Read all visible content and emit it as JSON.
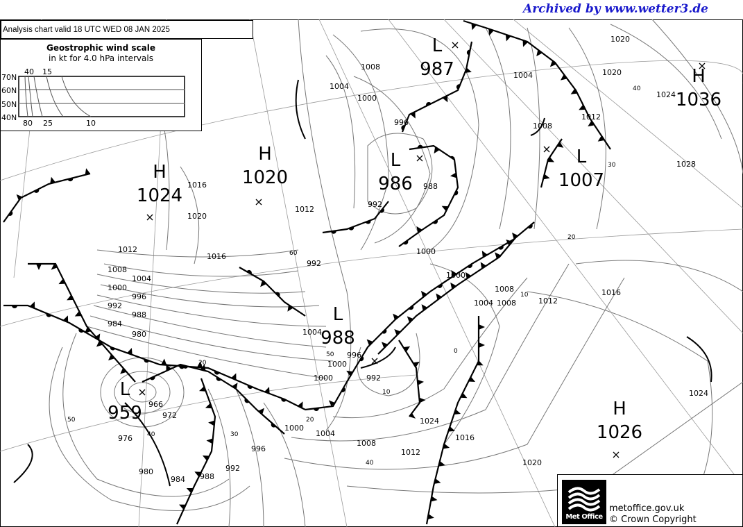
{
  "archive_text": "Archived by www.wetter3.de",
  "title": "Analysis chart  valid 18 UTC WED 08  JAN 2025",
  "wind_scale": {
    "heading": "Geostrophic wind scale",
    "subheading": "in kt for 4.0 hPa intervals",
    "latitudes": [
      "70N",
      "60N",
      "50N",
      "40N"
    ],
    "top_labels": [
      "40",
      "15"
    ],
    "bottom_labels": [
      "80",
      "25",
      "10"
    ]
  },
  "pressure_centres": [
    {
      "type": "L",
      "value": "987"
    },
    {
      "type": "H",
      "value": "1036"
    },
    {
      "type": "L",
      "value": "986"
    },
    {
      "type": "L",
      "value": "1007"
    },
    {
      "type": "H",
      "value": "1020"
    },
    {
      "type": "H",
      "value": "1024"
    },
    {
      "type": "L",
      "value": "988"
    },
    {
      "type": "L",
      "value": "959"
    },
    {
      "type": "H",
      "value": "1026"
    }
  ],
  "isobar_labels": [
    "1008",
    "1004",
    "1000",
    "996",
    "992",
    "988",
    "1004",
    "1008",
    "1012",
    "1020",
    "1024",
    "1028",
    "1016",
    "1020",
    "1012",
    "1016",
    "1012",
    "1008",
    "1004",
    "1000",
    "996",
    "992",
    "988",
    "984",
    "980",
    "1000",
    "1000",
    "1008",
    "1004",
    "1008",
    "1012",
    "1016",
    "1020",
    "1004",
    "1000",
    "996",
    "992",
    "966",
    "972",
    "976",
    "980",
    "984",
    "988",
    "992",
    "996",
    "1000",
    "1004",
    "1008",
    "1012",
    "1016",
    "1020",
    "1024",
    "1024",
    "992",
    "1000",
    "996"
  ],
  "wind_labels": [
    "40",
    "30",
    "20",
    "60",
    "20",
    "10",
    "50",
    "0",
    "10",
    "40",
    "30",
    "20",
    "50",
    "40"
  ],
  "colors": {
    "archive_text": "#1a1acc",
    "isobar": "#777777",
    "front": "#000000"
  },
  "footer": {
    "logo_text": "Met Office",
    "site": "metoffice.gov.uk",
    "copyright": "© Crown Copyright"
  }
}
